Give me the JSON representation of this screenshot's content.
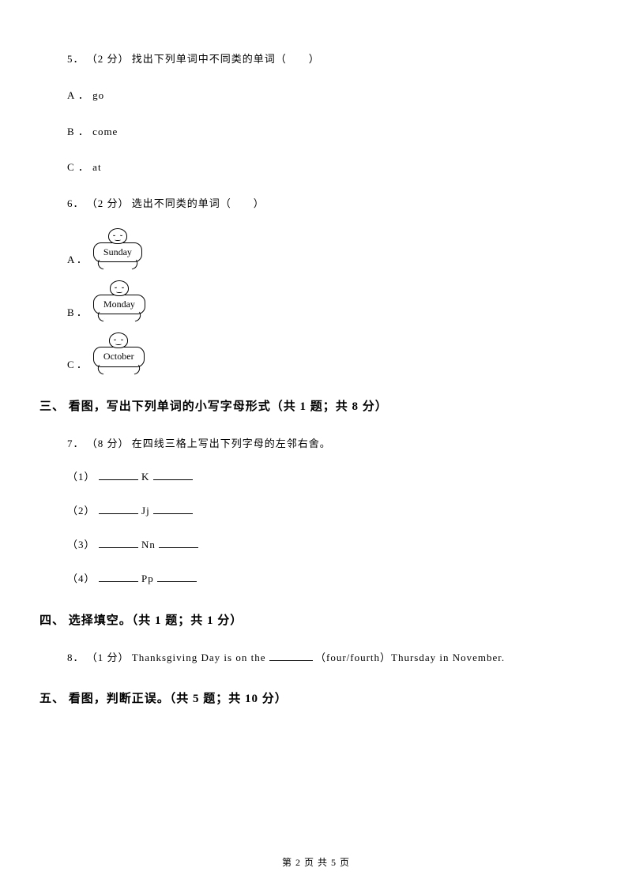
{
  "q5": {
    "number": "5．",
    "points": "（2 分）",
    "text": "找出下列单词中不同类的单词（　　）",
    "options": {
      "a": "A ． go",
      "b": "B ． come",
      "c": "C ． at"
    }
  },
  "q6": {
    "number": "6．",
    "points": "（2 分）",
    "text": "选出不同类的单词（　　）",
    "options": {
      "a_label": "A ．",
      "a_day": "Sunday",
      "b_label": "B ．",
      "b_day": "Monday",
      "c_label": "C ．",
      "c_day": "October"
    }
  },
  "section3": {
    "title": "三、 看图，写出下列单词的小写字母形式（共 1 题；共 8 分）"
  },
  "q7": {
    "number": "7．",
    "points": "（8 分）",
    "text": "在四线三格上写出下列字母的左邻右舍。",
    "sub1": "（1）",
    "sub1_letter": " K ",
    "sub2": "（2）",
    "sub2_letter": " Jj ",
    "sub3": "（3）",
    "sub3_letter": " Nn ",
    "sub4": "（4）",
    "sub4_letter": " Pp "
  },
  "section4": {
    "title": "四、 选择填空。（共 1 题；共 1 分）"
  },
  "q8": {
    "number": "8．",
    "points": "（1 分）",
    "text_before": "Thanksgiving Day is on the ",
    "text_after": "（four/fourth）Thursday in November."
  },
  "section5": {
    "title": "五、 看图，判断正误。（共 5 题；共 10 分）"
  },
  "footer": {
    "text": "第 2 页 共 5 页"
  }
}
